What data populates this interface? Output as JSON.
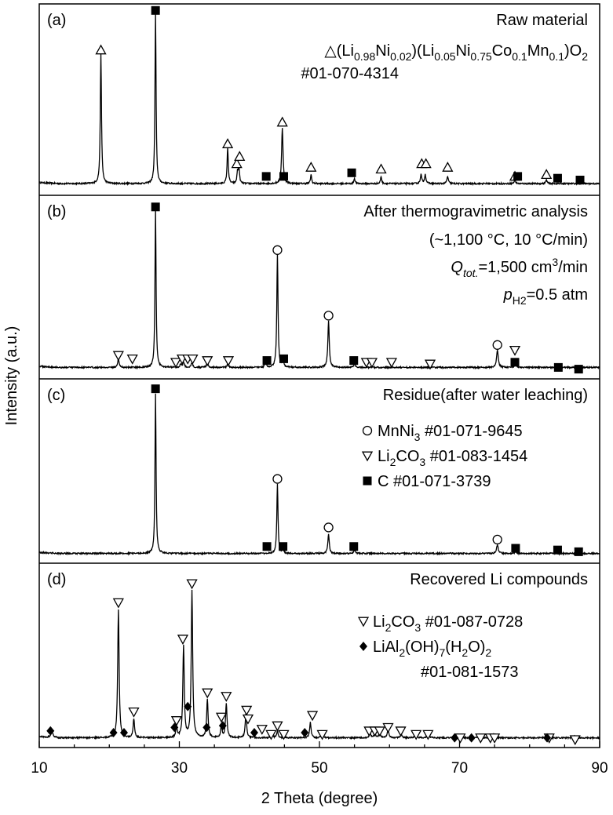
{
  "chart_data": {
    "type": "line",
    "xlabel": "2 Theta (degree)",
    "ylabel": "Intensity (a.u.)",
    "xlim": [
      10,
      90
    ],
    "xticks": [
      10,
      30,
      50,
      70,
      90
    ],
    "panels": [
      {
        "label": "(a)",
        "title": "Raw material",
        "legend": [
          {
            "marker": "triangle-up-open",
            "parts": [
              [
                "n",
                "△(Li"
              ],
              [
                "sub",
                "0.98"
              ],
              [
                "n",
                "Ni"
              ],
              [
                "sub",
                "0.02"
              ],
              [
                "n",
                ")(Li"
              ],
              [
                "sub",
                "0.05"
              ],
              [
                "n",
                "Ni"
              ],
              [
                "sub",
                "0.75"
              ],
              [
                "n",
                "Co"
              ],
              [
                "sub",
                "0.1"
              ],
              [
                "n",
                "Mn"
              ],
              [
                "sub",
                "0.1"
              ],
              [
                "n",
                ")O"
              ],
              [
                "sub",
                "2"
              ]
            ]
          },
          {
            "marker": "",
            "parts": [
              [
                "n",
                "#01-070-4314"
              ]
            ]
          }
        ],
        "baseline": 0.03,
        "peaks": [
          [
            18.8,
            0.72,
            0.1
          ],
          [
            26.6,
            0.95,
            0.09
          ],
          [
            36.9,
            0.2,
            0.1
          ],
          [
            38.3,
            0.06,
            0.1
          ],
          [
            38.5,
            0.09,
            0.1
          ],
          [
            44.7,
            0.31,
            0.12
          ],
          [
            48.8,
            0.05,
            0.1
          ],
          [
            55.0,
            0.03,
            0.1
          ],
          [
            58.8,
            0.04,
            0.1
          ],
          [
            64.5,
            0.05,
            0.12
          ],
          [
            65.1,
            0.05,
            0.12
          ],
          [
            68.3,
            0.04,
            0.12
          ],
          [
            77.9,
            0.02,
            0.12
          ],
          [
            82.4,
            0.02,
            0.12
          ]
        ],
        "markers": [
          {
            "type": "triangle-up-open",
            "points": [
              [
                18.8,
                0.77
              ],
              [
                36.9,
                0.25
              ],
              [
                38.2,
                0.14
              ],
              [
                38.6,
                0.18
              ],
              [
                44.7,
                0.37
              ],
              [
                48.8,
                0.12
              ],
              [
                58.8,
                0.11
              ],
              [
                64.6,
                0.14
              ],
              [
                65.2,
                0.14
              ],
              [
                68.3,
                0.12
              ],
              [
                77.9,
                0.07
              ],
              [
                82.4,
                0.08
              ]
            ]
          },
          {
            "type": "square-filled",
            "points": [
              [
                26.6,
                0.99
              ],
              [
                42.4,
                0.07
              ],
              [
                44.9,
                0.07
              ],
              [
                54.6,
                0.09
              ],
              [
                78.3,
                0.07
              ],
              [
                84.0,
                0.06
              ],
              [
                87.2,
                0.05
              ]
            ]
          }
        ]
      },
      {
        "label": "(b)",
        "title": "After thermogravimetric analysis",
        "annotations": [
          {
            "parts": [
              [
                "n",
                "(~1,100 °C, 10 °C/min)"
              ]
            ]
          },
          {
            "parts": [
              [
                "i",
                "Q"
              ],
              [
                "isub",
                "tot."
              ],
              [
                "n",
                "=1,500 cm"
              ],
              [
                "sup",
                "3"
              ],
              [
                "n",
                "/min"
              ]
            ]
          },
          {
            "parts": [
              [
                "i",
                "p"
              ],
              [
                "sub",
                "H2"
              ],
              [
                "n",
                "=0.5 atm"
              ]
            ]
          }
        ],
        "baseline": 0.03,
        "peaks": [
          [
            21.3,
            0.05,
            0.12
          ],
          [
            26.6,
            0.92,
            0.09
          ],
          [
            30.2,
            0.02,
            0.12
          ],
          [
            30.6,
            0.03,
            0.12
          ],
          [
            31.8,
            0.03,
            0.12
          ],
          [
            34.0,
            0.03,
            0.12
          ],
          [
            36.9,
            0.02,
            0.12
          ],
          [
            42.3,
            0.03,
            0.12
          ],
          [
            44.0,
            0.66,
            0.1
          ],
          [
            44.8,
            0.06,
            0.1
          ],
          [
            51.3,
            0.27,
            0.12
          ],
          [
            55.0,
            0.02,
            0.12
          ],
          [
            75.4,
            0.1,
            0.14
          ],
          [
            78.0,
            0.03,
            0.12
          ]
        ],
        "markers": [
          {
            "type": "triangle-down-open",
            "points": [
              [
                21.3,
                0.1
              ],
              [
                23.3,
                0.08
              ],
              [
                29.5,
                0.06
              ],
              [
                30.4,
                0.08
              ],
              [
                31.2,
                0.08
              ],
              [
                31.9,
                0.08
              ],
              [
                34.0,
                0.07
              ],
              [
                37.0,
                0.07
              ],
              [
                56.7,
                0.06
              ],
              [
                57.5,
                0.06
              ],
              [
                60.3,
                0.06
              ],
              [
                65.8,
                0.05
              ],
              [
                77.9,
                0.13
              ]
            ]
          },
          {
            "type": "circle-open",
            "points": [
              [
                44.0,
                0.71
              ],
              [
                51.3,
                0.33
              ],
              [
                75.4,
                0.16
              ]
            ]
          },
          {
            "type": "square-filled",
            "points": [
              [
                26.6,
                0.96
              ],
              [
                42.5,
                0.07
              ],
              [
                44.9,
                0.08
              ],
              [
                54.9,
                0.07
              ],
              [
                77.9,
                0.06
              ],
              [
                84.1,
                0.03
              ],
              [
                87.0,
                0.02
              ]
            ]
          }
        ]
      },
      {
        "label": "(c)",
        "title": "Residue(after water leaching)",
        "legend": [
          {
            "marker": "circle-open",
            "parts": [
              [
                "n",
                "MnNi"
              ],
              [
                "sub",
                "3"
              ],
              [
                "n",
                " #01-071-9645"
              ]
            ]
          },
          {
            "marker": "triangle-down-open",
            "parts": [
              [
                "n",
                "Li"
              ],
              [
                "sub",
                "2"
              ],
              [
                "n",
                "CO"
              ],
              [
                "sub",
                "3"
              ],
              [
                "n",
                " #01-083-1454"
              ]
            ]
          },
          {
            "marker": "square-filled",
            "parts": [
              [
                "n",
                "C #01-071-3739"
              ]
            ]
          }
        ],
        "baseline": 0.02,
        "peaks": [
          [
            26.6,
            0.92,
            0.09
          ],
          [
            44.0,
            0.4,
            0.1
          ],
          [
            44.8,
            0.03,
            0.1
          ],
          [
            51.3,
            0.11,
            0.12
          ],
          [
            55.0,
            0.02,
            0.12
          ],
          [
            75.4,
            0.05,
            0.14
          ],
          [
            78.0,
            0.01,
            0.12
          ]
        ],
        "markers": [
          {
            "type": "circle-open",
            "points": [
              [
                44.0,
                0.45
              ],
              [
                51.3,
                0.17
              ],
              [
                75.4,
                0.1
              ]
            ]
          },
          {
            "type": "square-filled",
            "points": [
              [
                26.6,
                0.97
              ],
              [
                42.5,
                0.06
              ],
              [
                44.8,
                0.06
              ],
              [
                54.9,
                0.06
              ],
              [
                78.0,
                0.05
              ],
              [
                84.0,
                0.04
              ],
              [
                87.0,
                0.03
              ]
            ]
          }
        ]
      },
      {
        "label": "(d)",
        "title": "Recovered Li compounds",
        "legend": [
          {
            "marker": "triangle-down-open",
            "parts": [
              [
                "n",
                "Li"
              ],
              [
                "sub",
                "2"
              ],
              [
                "n",
                "CO"
              ],
              [
                "sub",
                "3"
              ],
              [
                "n",
                " #01-087-0728"
              ]
            ]
          },
          {
            "marker": "diamond-filled",
            "parts": [
              [
                "n",
                "LiAl"
              ],
              [
                "sub",
                "2"
              ],
              [
                "n",
                "(OH)"
              ],
              [
                "sub",
                "7"
              ],
              [
                "n",
                "(H"
              ],
              [
                "sub",
                "2"
              ],
              [
                "n",
                "O)"
              ],
              [
                "sub",
                "2"
              ]
            ]
          },
          {
            "marker": "",
            "parts": [
              [
                "n",
                "#01-081-1573"
              ]
            ]
          }
        ],
        "baseline": 0.02,
        "peaks": [
          [
            11.8,
            0.04,
            0.15
          ],
          [
            21.3,
            0.74,
            0.12
          ],
          [
            23.5,
            0.11,
            0.12
          ],
          [
            29.6,
            0.06,
            0.12
          ],
          [
            30.6,
            0.53,
            0.12
          ],
          [
            31.8,
            0.85,
            0.12
          ],
          [
            34.0,
            0.22,
            0.12
          ],
          [
            36.0,
            0.07,
            0.12
          ],
          [
            36.7,
            0.2,
            0.12
          ],
          [
            39.5,
            0.14,
            0.12
          ],
          [
            43.2,
            0.03,
            0.12
          ],
          [
            44.0,
            0.04,
            0.12
          ],
          [
            48.7,
            0.09,
            0.12
          ],
          [
            50.3,
            0.03,
            0.12
          ],
          [
            57.2,
            0.03,
            0.12
          ],
          [
            57.9,
            0.03,
            0.12
          ],
          [
            58.6,
            0.03,
            0.12
          ],
          [
            59.8,
            0.05,
            0.12
          ],
          [
            61.7,
            0.02,
            0.12
          ],
          [
            63.7,
            0.03,
            0.12
          ],
          [
            65.5,
            0.03,
            0.12
          ],
          [
            69.8,
            0.02,
            0.12
          ],
          [
            72.8,
            0.02,
            0.12
          ],
          [
            74.8,
            0.02,
            0.12
          ],
          [
            82.6,
            0.01,
            0.12
          ],
          [
            86.4,
            0.01,
            0.12
          ]
        ],
        "markers": [
          {
            "type": "triangle-down-open",
            "points": [
              [
                21.3,
                0.8
              ],
              [
                23.5,
                0.17
              ],
              [
                29.6,
                0.12
              ],
              [
                30.5,
                0.59
              ],
              [
                31.8,
                0.91
              ],
              [
                34.0,
                0.28
              ],
              [
                36.0,
                0.14
              ],
              [
                36.7,
                0.26
              ],
              [
                39.6,
                0.18
              ],
              [
                39.8,
                0.13
              ],
              [
                41.8,
                0.07
              ],
              [
                43.1,
                0.04
              ],
              [
                44.0,
                0.09
              ],
              [
                44.9,
                0.04
              ],
              [
                49.0,
                0.15
              ],
              [
                50.4,
                0.04
              ],
              [
                57.1,
                0.06
              ],
              [
                57.9,
                0.06
              ],
              [
                58.6,
                0.06
              ],
              [
                59.8,
                0.08
              ],
              [
                61.6,
                0.06
              ],
              [
                63.8,
                0.04
              ],
              [
                65.5,
                0.04
              ],
              [
                70.1,
                0.02
              ],
              [
                73.0,
                0.02
              ],
              [
                74.4,
                0.02
              ],
              [
                75.0,
                0.02
              ],
              [
                82.8,
                0.02
              ],
              [
                86.5,
                0.01
              ]
            ]
          },
          {
            "type": "diamond-filled",
            "points": [
              [
                11.6,
                0.06
              ],
              [
                20.6,
                0.05
              ],
              [
                22.1,
                0.05
              ],
              [
                29.3,
                0.08
              ],
              [
                31.2,
                0.2
              ],
              [
                33.9,
                0.08
              ],
              [
                36.2,
                0.09
              ],
              [
                40.7,
                0.05
              ],
              [
                47.9,
                0.05
              ],
              [
                69.3,
                0.02
              ],
              [
                71.7,
                0.02
              ],
              [
                82.5,
                0.02
              ]
            ]
          }
        ]
      }
    ]
  }
}
